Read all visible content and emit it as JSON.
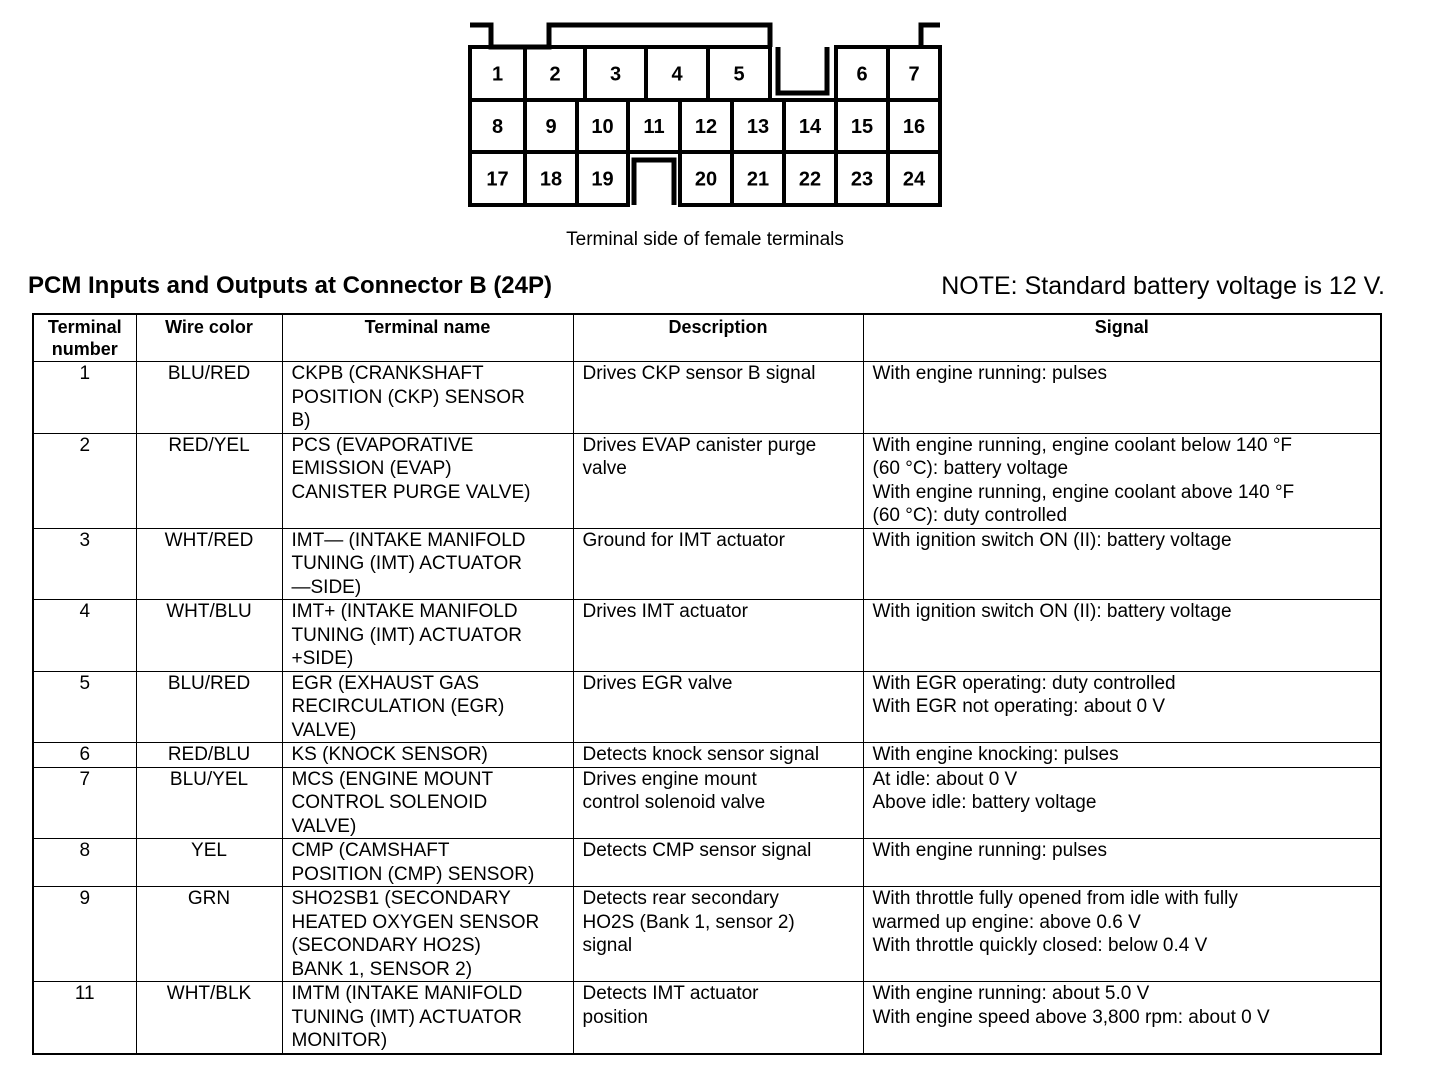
{
  "connector": {
    "rows": [
      [
        "1",
        "2",
        "3",
        "4",
        "5",
        "6",
        "7"
      ],
      [
        "8",
        "9",
        "10",
        "11",
        "12",
        "13",
        "14",
        "15",
        "16"
      ],
      [
        "17",
        "18",
        "19",
        "20",
        "21",
        "22",
        "23",
        "24"
      ]
    ],
    "caption": "Terminal side of female terminals"
  },
  "header": {
    "title": "PCM Inputs and Outputs at Connector B (24P)",
    "note": "NOTE: Standard battery voltage is 12 V."
  },
  "table": {
    "columns": [
      "Terminal number",
      "Wire color",
      "Terminal name",
      "Description",
      "Signal"
    ],
    "rows": [
      {
        "terminal": "1",
        "wire": "BLU/RED",
        "name": [
          "CKPB (CRANKSHAFT",
          "POSITION (CKP) SENSOR",
          "B)"
        ],
        "desc": [
          "Drives CKP sensor B signal"
        ],
        "signal": [
          "With engine running: pulses"
        ]
      },
      {
        "terminal": "2",
        "wire": "RED/YEL",
        "name": [
          "PCS (EVAPORATIVE",
          "EMISSION (EVAP)",
          "CANISTER PURGE VALVE)"
        ],
        "desc": [
          "Drives EVAP canister purge",
          "valve"
        ],
        "signal": [
          "With engine running, engine coolant below 140 °F",
          "(60 °C): battery voltage",
          "With engine running, engine coolant above 140 °F",
          "(60 °C): duty controlled"
        ]
      },
      {
        "terminal": "3",
        "wire": "WHT/RED",
        "name": [
          "IMT— (INTAKE MANIFOLD",
          "TUNING (IMT) ACTUATOR",
          "—SIDE)"
        ],
        "desc": [
          "Ground for IMT actuator"
        ],
        "signal": [
          "With ignition switch ON (II): battery voltage"
        ]
      },
      {
        "terminal": "4",
        "wire": "WHT/BLU",
        "name": [
          "IMT+ (INTAKE MANIFOLD",
          "TUNING (IMT) ACTUATOR",
          "+SIDE)"
        ],
        "desc": [
          "Drives IMT actuator"
        ],
        "signal": [
          "With ignition switch ON (II): battery voltage"
        ]
      },
      {
        "terminal": "5",
        "wire": "BLU/RED",
        "name": [
          "EGR (EXHAUST GAS",
          "RECIRCULATION (EGR)",
          "VALVE)"
        ],
        "desc": [
          "Drives EGR valve"
        ],
        "signal": [
          "With EGR operating: duty controlled",
          "With EGR not operating: about 0 V"
        ]
      },
      {
        "terminal": "6",
        "wire": "RED/BLU",
        "name": [
          "KS (KNOCK SENSOR)"
        ],
        "desc": [
          "Detects knock sensor signal"
        ],
        "signal": [
          "With engine knocking: pulses"
        ]
      },
      {
        "terminal": "7",
        "wire": "BLU/YEL",
        "name": [
          "MCS (ENGINE MOUNT",
          "CONTROL SOLENOID",
          "VALVE)"
        ],
        "desc": [
          "Drives engine mount",
          "control solenoid valve"
        ],
        "signal": [
          "At idle: about 0 V",
          "Above idle: battery voltage"
        ]
      },
      {
        "terminal": "8",
        "wire": "YEL",
        "name": [
          "CMP (CAMSHAFT",
          "POSITION (CMP) SENSOR)"
        ],
        "desc": [
          "Detects CMP sensor signal"
        ],
        "signal": [
          "With engine running: pulses"
        ]
      },
      {
        "terminal": "9",
        "wire": "GRN",
        "name": [
          "SHO2SB1 (SECONDARY",
          "HEATED OXYGEN SENSOR",
          "(SECONDARY HO2S)",
          "BANK 1, SENSOR 2)"
        ],
        "desc": [
          "Detects rear secondary",
          "HO2S (Bank 1, sensor 2)",
          "signal"
        ],
        "signal": [
          "With throttle fully opened from idle with fully",
          "warmed up engine: above 0.6 V",
          "With throttle quickly closed: below 0.4 V"
        ]
      },
      {
        "terminal": "11",
        "wire": "WHT/BLK",
        "name": [
          "IMTM (INTAKE MANIFOLD",
          "TUNING (IMT) ACTUATOR",
          "MONITOR)"
        ],
        "desc": [
          "Detects IMT actuator",
          "position"
        ],
        "signal": [
          "With engine running: about 5.0 V",
          "With engine speed above 3,800 rpm: about 0 V"
        ]
      }
    ]
  }
}
